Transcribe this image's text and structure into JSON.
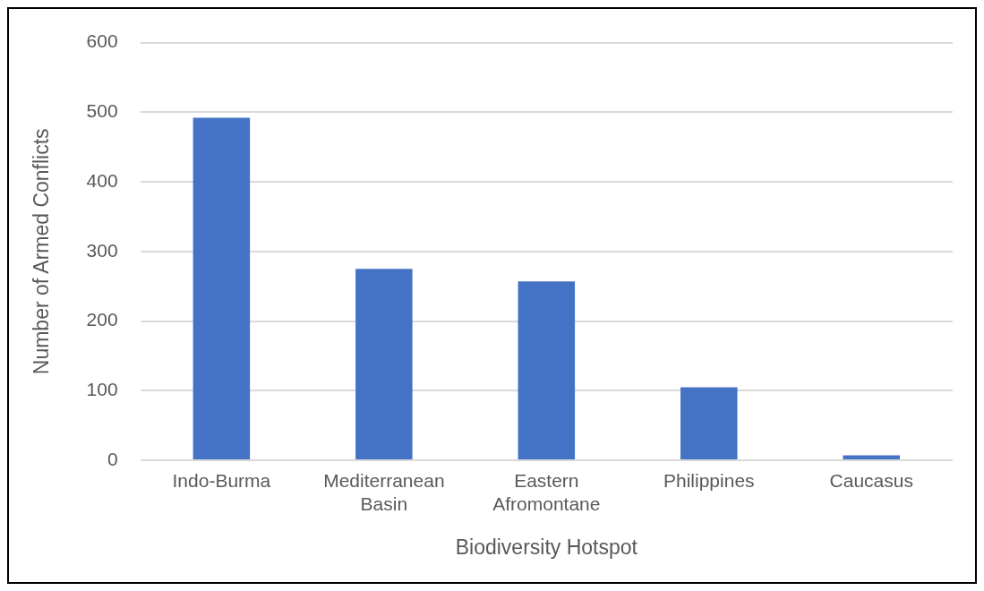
{
  "chart_data": {
    "type": "bar",
    "xlabel": "Biodiversity Hotspot",
    "ylabel": "Number of Armed Conflicts",
    "categories": [
      "Indo-Burma",
      "Mediterranean Basin",
      "Eastern Afromontane",
      "Philippines",
      "Caucasus"
    ],
    "values": [
      492,
      275,
      257,
      105,
      7
    ],
    "color": "#4472c4",
    "ylim": [
      0,
      600
    ],
    "yticks": [
      0,
      100,
      200,
      300,
      400,
      500,
      600
    ],
    "grid": "y"
  }
}
